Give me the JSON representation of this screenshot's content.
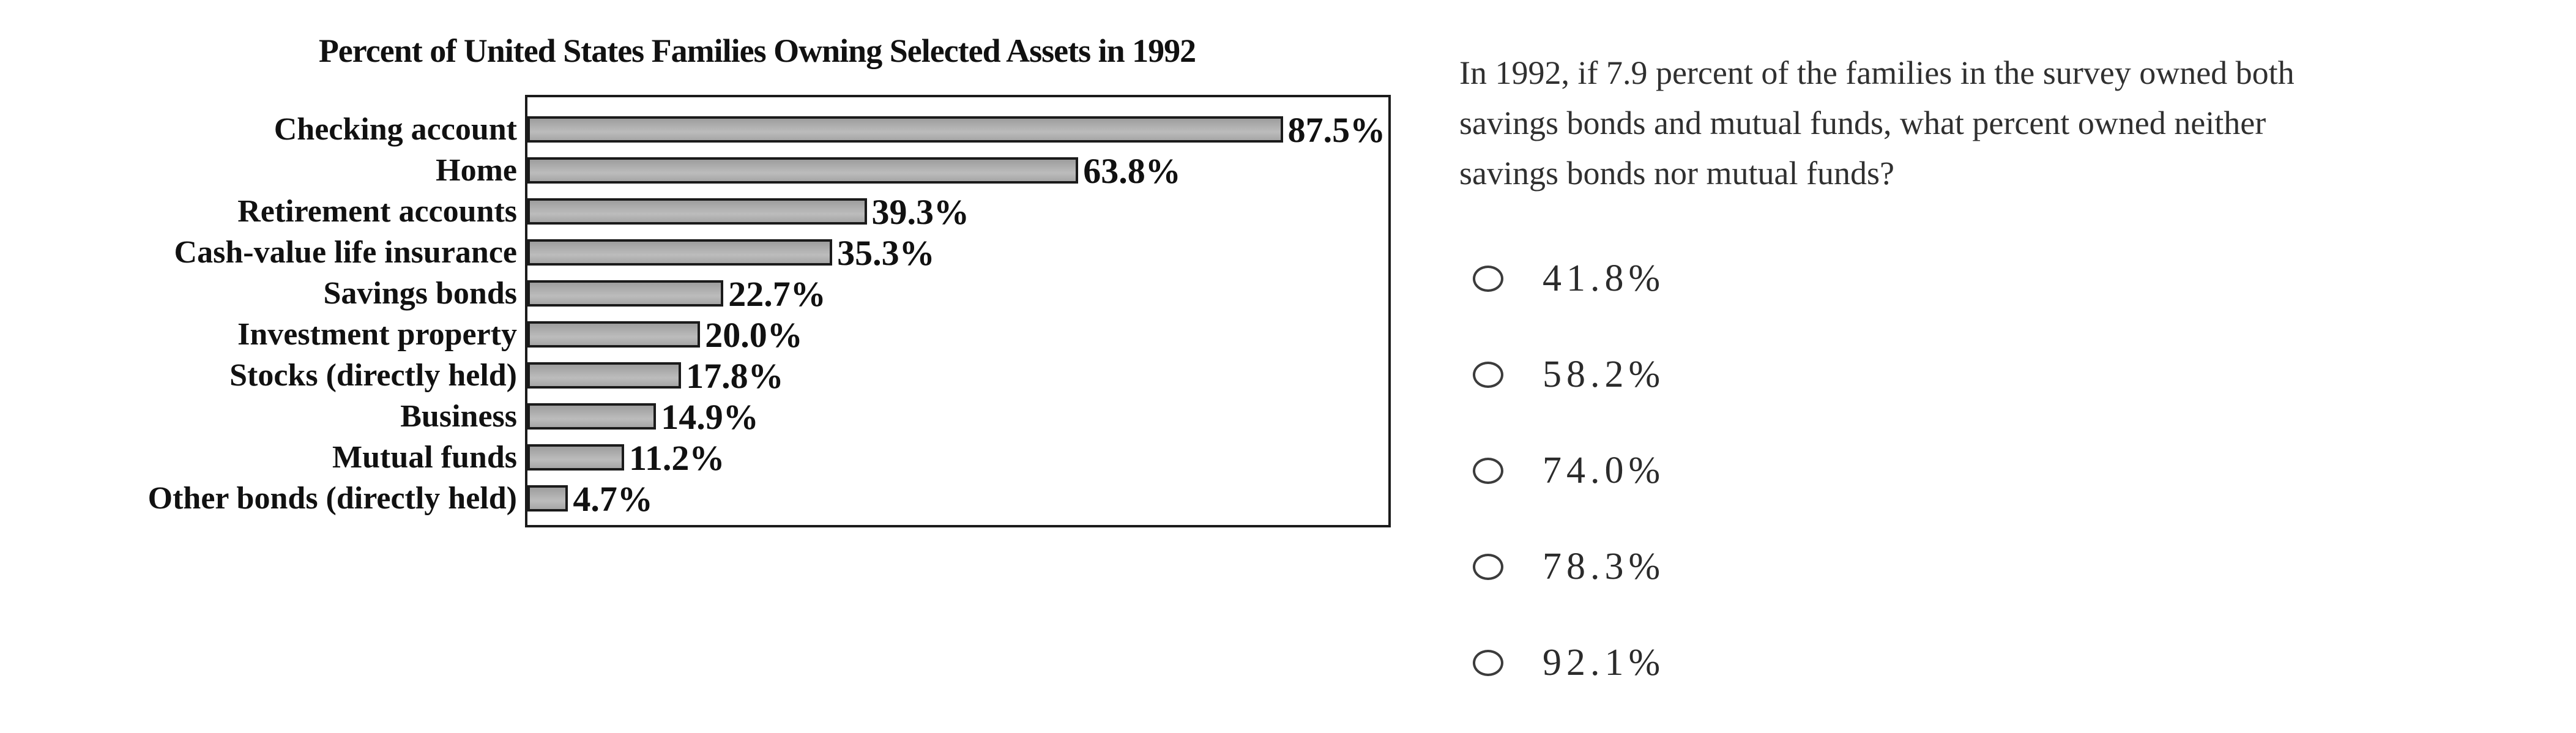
{
  "chart_data": {
    "type": "bar",
    "orientation": "horizontal",
    "title": "Percent of United States Families Owning Selected Assets in 1992",
    "categories": [
      "Checking account",
      "Home",
      "Retirement accounts",
      "Cash-value life insurance",
      "Savings bonds",
      "Investment property",
      "Stocks (directly held)",
      "Business",
      "Mutual funds",
      "Other bonds (directly held)"
    ],
    "values": [
      87.5,
      63.8,
      39.3,
      35.3,
      22.7,
      20.0,
      17.8,
      14.9,
      11.2,
      4.7
    ],
    "value_labels": [
      "87.5%",
      "63.8%",
      "39.3%",
      "35.3%",
      "22.7%",
      "20.0%",
      "17.8%",
      "14.9%",
      "11.2%",
      "4.7%"
    ],
    "xlabel": "",
    "ylabel": "",
    "xlim": [
      0,
      100
    ],
    "grid": false,
    "legend": false,
    "bar_color": "#ababab",
    "bar_border_color": "#1b1b1b",
    "plot_border_color": "#1b1b1b"
  },
  "question": {
    "lines": [
      "In 1992, if 7.9 percent of the families in the survey owned both",
      "savings bonds and mutual funds, what percent owned neither",
      "savings bonds nor mutual funds?"
    ],
    "full_text": "In 1992, if 7.9 percent of the families in the survey owned both savings bonds and mutual funds, what percent owned neither savings bonds nor mutual funds?"
  },
  "options": [
    {
      "label": "41.8%",
      "selected": false
    },
    {
      "label": "58.2%",
      "selected": false
    },
    {
      "label": "74.0%",
      "selected": false
    },
    {
      "label": "78.3%",
      "selected": false
    },
    {
      "label": "92.1%",
      "selected": false
    }
  ],
  "icons": {
    "radio_unselected": "ellipse-outline"
  }
}
